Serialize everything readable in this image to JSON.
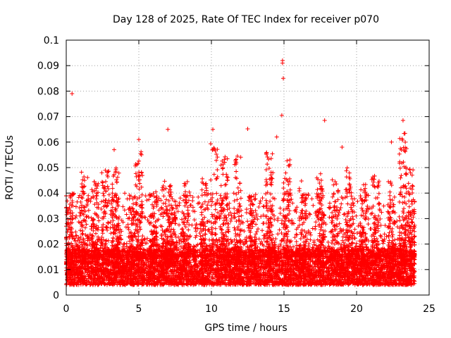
{
  "chart_data": {
    "type": "scatter",
    "title": "Day 128 of 2025, Rate Of TEC Index for receiver p070",
    "xlabel": "GPS time / hours",
    "ylabel": "ROTI / TECUs",
    "xlim": [
      0,
      25
    ],
    "ylim": [
      0,
      0.1
    ],
    "xticks": [
      0,
      5,
      10,
      15,
      20,
      25
    ],
    "xtick_labels": [
      "0",
      "5",
      "10",
      "15",
      "20",
      "25"
    ],
    "yticks": [
      0,
      0.01,
      0.02,
      0.03,
      0.04,
      0.05,
      0.06,
      0.07,
      0.08,
      0.09,
      0.1
    ],
    "ytick_labels": [
      "0",
      "0.01",
      "0.02",
      "0.03",
      "0.04",
      "0.05",
      "0.06",
      "0.07",
      "0.08",
      "0.09",
      "0.1"
    ],
    "grid": true,
    "marker": "+",
    "color": "#ff0000",
    "data_x_range": [
      0,
      24
    ],
    "baseline_band": [
      0.004,
      0.018
    ],
    "notable_points": [
      {
        "x": 0.4,
        "y": 0.079
      },
      {
        "x": 14.9,
        "y": 0.092
      },
      {
        "x": 14.9,
        "y": 0.091
      },
      {
        "x": 14.95,
        "y": 0.085
      },
      {
        "x": 14.85,
        "y": 0.0705
      },
      {
        "x": 17.8,
        "y": 0.0685
      },
      {
        "x": 23.2,
        "y": 0.0685
      },
      {
        "x": 12.5,
        "y": 0.0652
      },
      {
        "x": 10.1,
        "y": 0.065
      },
      {
        "x": 7.0,
        "y": 0.065
      },
      {
        "x": 14.5,
        "y": 0.062
      },
      {
        "x": 22.4,
        "y": 0.06
      },
      {
        "x": 5.0,
        "y": 0.061
      },
      {
        "x": 19.0,
        "y": 0.058
      },
      {
        "x": 3.3,
        "y": 0.057
      }
    ],
    "burst_peaks": [
      {
        "x": 0.2,
        "y": 0.04
      },
      {
        "x": 1.3,
        "y": 0.05
      },
      {
        "x": 2.0,
        "y": 0.045
      },
      {
        "x": 2.7,
        "y": 0.049
      },
      {
        "x": 3.4,
        "y": 0.05
      },
      {
        "x": 4.5,
        "y": 0.04
      },
      {
        "x": 5.0,
        "y": 0.058
      },
      {
        "x": 6.0,
        "y": 0.044
      },
      {
        "x": 6.8,
        "y": 0.046
      },
      {
        "x": 7.3,
        "y": 0.044
      },
      {
        "x": 8.3,
        "y": 0.045
      },
      {
        "x": 9.5,
        "y": 0.046
      },
      {
        "x": 10.2,
        "y": 0.06
      },
      {
        "x": 10.9,
        "y": 0.056
      },
      {
        "x": 11.8,
        "y": 0.056
      },
      {
        "x": 12.8,
        "y": 0.04
      },
      {
        "x": 14.0,
        "y": 0.058
      },
      {
        "x": 15.2,
        "y": 0.056
      },
      {
        "x": 16.3,
        "y": 0.045
      },
      {
        "x": 17.5,
        "y": 0.048
      },
      {
        "x": 18.5,
        "y": 0.046
      },
      {
        "x": 19.5,
        "y": 0.05
      },
      {
        "x": 20.5,
        "y": 0.044
      },
      {
        "x": 21.3,
        "y": 0.047
      },
      {
        "x": 22.4,
        "y": 0.045
      },
      {
        "x": 23.2,
        "y": 0.065
      },
      {
        "x": 23.8,
        "y": 0.05
      }
    ]
  }
}
